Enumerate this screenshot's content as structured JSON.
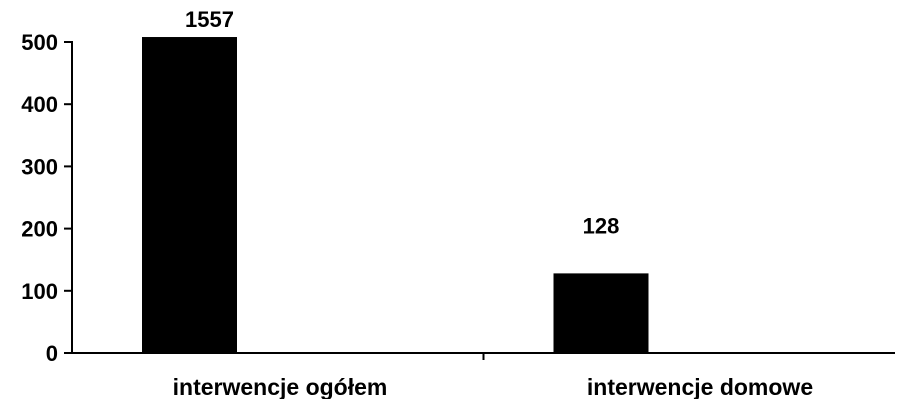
{
  "chart_data": {
    "type": "bar",
    "title": "",
    "xlabel": "",
    "ylabel": "",
    "categories": [
      "interwencje ogółem",
      "interwencje domowe"
    ],
    "values": [
      1557,
      128
    ],
    "data_labels": [
      "1557",
      "128"
    ],
    "display_values": [
      508,
      128
    ],
    "ylim": [
      0,
      500
    ],
    "yticks": [
      0,
      100,
      200,
      300,
      400,
      500
    ],
    "ytick_labels": [
      "0",
      "100",
      "200",
      "300",
      "400",
      "500"
    ],
    "grid": false,
    "legend": "none",
    "colors": {
      "bar": "#000000",
      "axis": "#000000"
    }
  }
}
